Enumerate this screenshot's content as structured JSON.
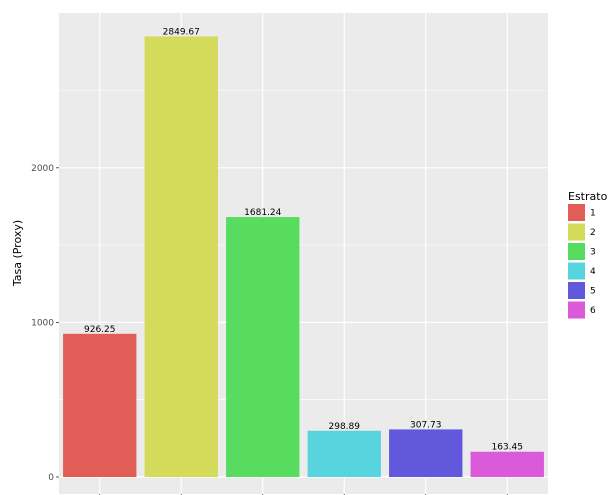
{
  "chart_data": {
    "type": "bar",
    "categories": [
      "1",
      "2",
      "3",
      "4",
      "5",
      "6"
    ],
    "values": [
      926.25,
      2849.67,
      1681.24,
      298.89,
      307.73,
      163.45
    ],
    "data_labels": [
      "926.25",
      "2849.67",
      "1681.24",
      "298.89",
      "307.73",
      "163.45"
    ],
    "xlabel": "",
    "ylabel": "Tasa (Proxy)",
    "ylim": [
      0,
      3000
    ],
    "yticks": [
      0,
      1000,
      2000
    ],
    "ytick_labels": [
      "0",
      "1000",
      "2000"
    ],
    "grid": true,
    "legend": {
      "title": "Estrato",
      "placement": "right",
      "entries": [
        "1",
        "2",
        "3",
        "4",
        "5",
        "6"
      ]
    },
    "colors": [
      "#e05e57",
      "#d4da5a",
      "#58dc5f",
      "#58d4de",
      "#6258dc",
      "#da5ad9"
    ],
    "background": "#ebebeb"
  }
}
